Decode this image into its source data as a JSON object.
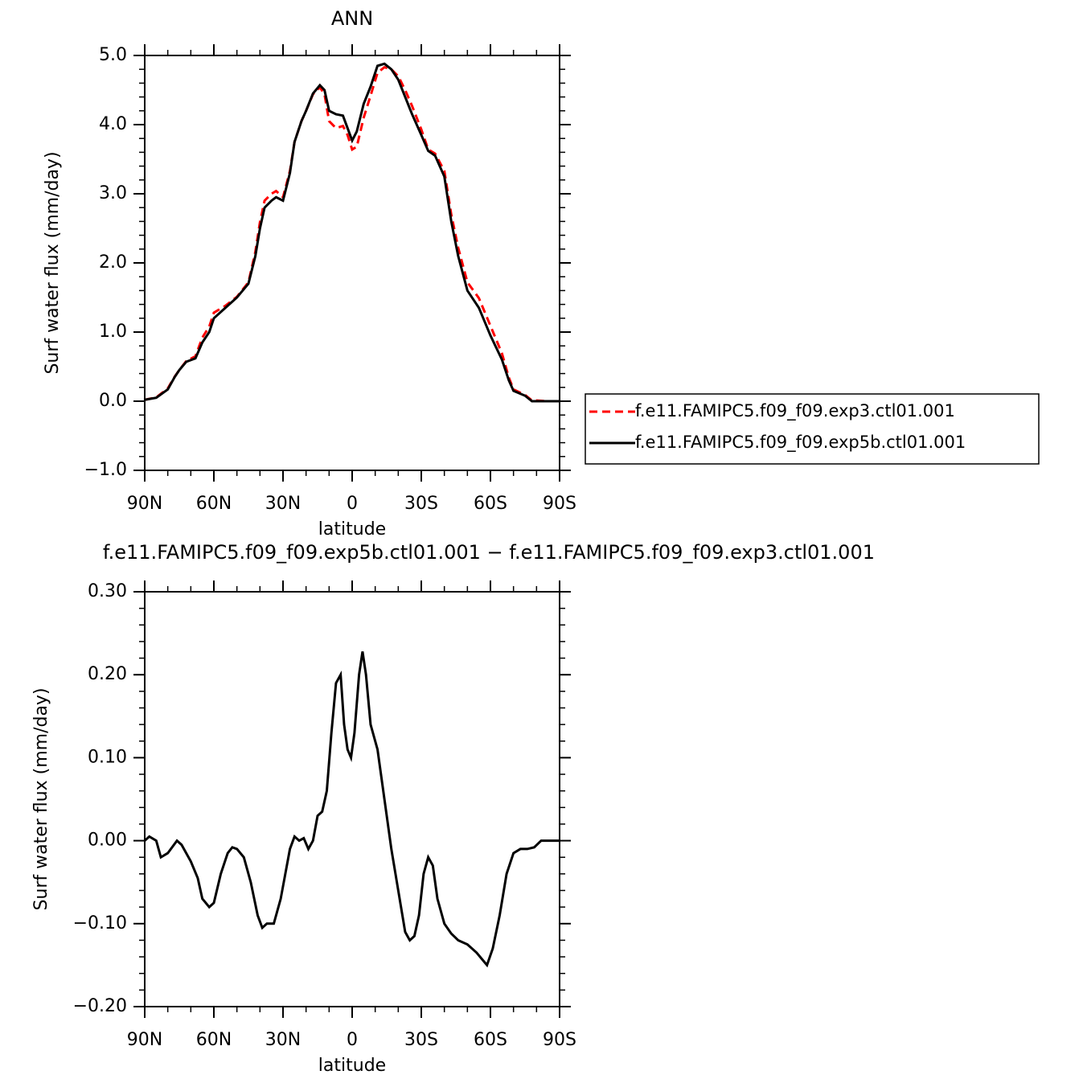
{
  "chart_data": [
    {
      "type": "line",
      "title": "ANN",
      "xlabel": "latitude",
      "ylabel": "Surf water flux (mm/day)",
      "x": [
        90,
        85,
        80,
        77,
        75,
        72,
        68,
        65,
        62,
        60,
        55,
        50,
        45,
        42,
        40,
        38,
        35,
        33,
        30,
        27,
        25,
        22,
        20,
        17,
        14,
        12,
        10,
        7,
        4,
        2,
        0,
        -2,
        -5,
        -8,
        -11,
        -14,
        -17,
        -20,
        -23,
        -26,
        -30,
        -33,
        -36,
        -40,
        -43,
        -46,
        -50,
        -55,
        -60,
        -65,
        -68,
        -70,
        -75,
        -78,
        -80,
        -85,
        -90
      ],
      "series": [
        {
          "name": "f.e11.FAMIPC5.f09_f09.exp3.ctl01.001",
          "color": "#ff0000",
          "linestyle": "dashed",
          "values": [
            0.02,
            0.055,
            0.185,
            0.355,
            0.45,
            0.58,
            0.65,
            0.92,
            1.08,
            1.28,
            1.38,
            1.51,
            1.72,
            2.16,
            2.59,
            2.9,
            3.0,
            3.04,
            2.95,
            3.33,
            3.75,
            4.05,
            4.2,
            4.44,
            4.54,
            4.44,
            4.05,
            3.95,
            3.98,
            3.85,
            3.64,
            3.68,
            4.1,
            4.42,
            4.75,
            4.83,
            4.8,
            4.7,
            4.5,
            4.27,
            3.93,
            3.64,
            3.58,
            3.33,
            2.7,
            2.22,
            1.72,
            1.49,
            1.09,
            0.69,
            0.34,
            0.17,
            0.09,
            0.01,
            0.01,
            0.0,
            0.0
          ]
        },
        {
          "name": "f.e11.FAMIPC5.f09_f09.exp5b.ctl01.001",
          "color": "#000000",
          "linestyle": "solid",
          "values": [
            0.02,
            0.05,
            0.17,
            0.35,
            0.45,
            0.57,
            0.62,
            0.85,
            1.0,
            1.2,
            1.35,
            1.5,
            1.7,
            2.1,
            2.5,
            2.8,
            2.9,
            2.95,
            2.9,
            3.3,
            3.75,
            4.05,
            4.2,
            4.45,
            4.57,
            4.5,
            4.2,
            4.15,
            4.13,
            3.95,
            3.77,
            3.9,
            4.3,
            4.55,
            4.85,
            4.88,
            4.8,
            4.65,
            4.4,
            4.15,
            3.85,
            3.62,
            3.55,
            3.25,
            2.6,
            2.1,
            1.6,
            1.35,
            0.95,
            0.6,
            0.3,
            0.15,
            0.08,
            0.0,
            0.0,
            0.0,
            0.0
          ]
        }
      ],
      "xlim": [
        90,
        -90
      ],
      "xticks": [
        {
          "value": 90,
          "label": "90N"
        },
        {
          "value": 60,
          "label": "60N"
        },
        {
          "value": 30,
          "label": "30N"
        },
        0,
        {
          "value": -30,
          "label": "30S"
        },
        {
          "value": -60,
          "label": "60S"
        },
        {
          "value": -90,
          "label": "90S"
        }
      ],
      "ylim": [
        -1,
        5
      ],
      "yticks": [
        {
          "value": -1,
          "label": "−1.0"
        },
        {
          "value": 0,
          "label": "0.0"
        },
        {
          "value": 1,
          "label": "1.0"
        },
        {
          "value": 2,
          "label": "2.0"
        },
        {
          "value": 3,
          "label": "3.0"
        },
        {
          "value": 4,
          "label": "4.0"
        },
        {
          "value": 5,
          "label": "5.0"
        }
      ],
      "legend": "right",
      "grid": false
    },
    {
      "type": "line",
      "title": "f.e11.FAMIPC5.f09_f09.exp5b.ctl01.001 − f.e11.FAMIPC5.f09_f09.exp3.ctl01.001",
      "xlabel": "latitude",
      "ylabel": "Surf water flux (mm/day)",
      "color": "#000000",
      "x": [
        90,
        88,
        85,
        83,
        80,
        76,
        74,
        70,
        67,
        65,
        62,
        60,
        57,
        54,
        52,
        50,
        47,
        44,
        41,
        39,
        37,
        34,
        31,
        29,
        27,
        25,
        23,
        21,
        19,
        17,
        15,
        13,
        11,
        9,
        7,
        5,
        3.5,
        2,
        0.5,
        -1,
        -3,
        -4.5,
        -6,
        -8,
        -11,
        -14,
        -17,
        -20,
        -23,
        -25,
        -27,
        -29,
        -31,
        -33,
        -35,
        -37,
        -40,
        -43,
        -46,
        -50,
        -54,
        -57,
        -58.5,
        -61,
        -64,
        -67,
        -70,
        -73,
        -76,
        -79,
        -82,
        -86,
        -90
      ],
      "values": [
        0.0,
        0.005,
        0.0,
        -0.02,
        -0.015,
        0.0,
        -0.005,
        -0.025,
        -0.045,
        -0.07,
        -0.08,
        -0.075,
        -0.04,
        -0.015,
        -0.008,
        -0.01,
        -0.02,
        -0.05,
        -0.09,
        -0.105,
        -0.1,
        -0.1,
        -0.07,
        -0.04,
        -0.01,
        0.005,
        0.0,
        0.003,
        -0.01,
        0.0,
        0.03,
        0.035,
        0.06,
        0.13,
        0.19,
        0.2,
        0.14,
        0.11,
        0.1,
        0.13,
        0.2,
        0.228,
        0.2,
        0.14,
        0.11,
        0.05,
        -0.01,
        -0.06,
        -0.11,
        -0.12,
        -0.115,
        -0.09,
        -0.04,
        -0.02,
        -0.03,
        -0.07,
        -0.1,
        -0.112,
        -0.12,
        -0.125,
        -0.135,
        -0.145,
        -0.15,
        -0.13,
        -0.09,
        -0.04,
        -0.015,
        -0.01,
        -0.01,
        -0.008,
        0.0,
        0.0,
        0.0
      ],
      "xlim": [
        90,
        -90
      ],
      "xticks": [
        {
          "value": 90,
          "label": "90N"
        },
        {
          "value": 60,
          "label": "60N"
        },
        {
          "value": 30,
          "label": "30N"
        },
        0,
        {
          "value": -30,
          "label": "30S"
        },
        {
          "value": -60,
          "label": "60S"
        },
        {
          "value": -90,
          "label": "90S"
        }
      ],
      "ylim": [
        -0.2,
        0.3
      ],
      "yticks": [
        {
          "value": -0.2,
          "label": "−0.20"
        },
        {
          "value": -0.1,
          "label": "−0.10"
        },
        {
          "value": 0,
          "label": "0.00"
        },
        {
          "value": 0.1,
          "label": "0.10"
        },
        {
          "value": 0.2,
          "label": "0.20"
        },
        {
          "value": 0.3,
          "label": "0.30"
        }
      ],
      "grid": false
    }
  ]
}
